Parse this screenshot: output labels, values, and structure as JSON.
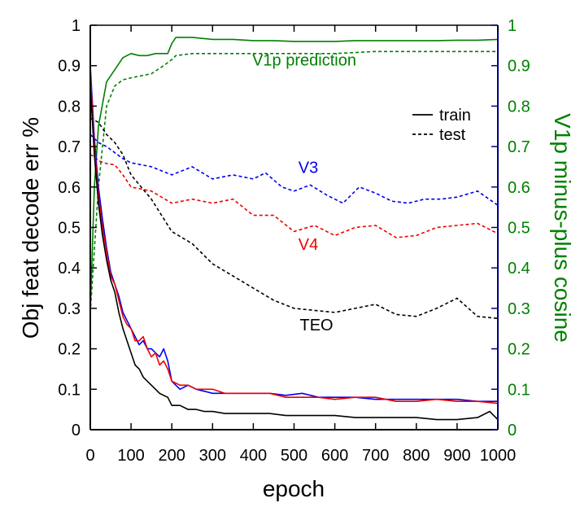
{
  "chart_data": {
    "type": "line",
    "xlabel": "epoch",
    "ylabel_left": "Obj feat decode err %",
    "ylabel_right": "V1p minus-plus cosine",
    "xlim": [
      0,
      1000
    ],
    "ylim_left": [
      0,
      1
    ],
    "ylim_right": [
      0,
      1
    ],
    "x_ticks": [
      0,
      100,
      200,
      300,
      400,
      500,
      600,
      700,
      800,
      900,
      1000
    ],
    "y_ticks": [
      0,
      0.1,
      0.2,
      0.3,
      0.4,
      0.5,
      0.6,
      0.7,
      0.8,
      0.9,
      1
    ],
    "grid": false,
    "legend": {
      "position": "top-right",
      "entries": [
        {
          "label": "train",
          "style": "solid"
        },
        {
          "label": "test",
          "style": "dashed"
        }
      ]
    },
    "annotations": [
      {
        "text": "V1p prediction",
        "color": "#008000",
        "x": 525,
        "y": 0.9,
        "axis": "right"
      },
      {
        "text": "V3",
        "color": "#0000ee",
        "x": 535,
        "y": 0.635,
        "axis": "left"
      },
      {
        "text": "V4",
        "color": "#ee0000",
        "x": 535,
        "y": 0.445,
        "axis": "left"
      },
      {
        "text": "TEO",
        "color": "#000000",
        "x": 555,
        "y": 0.245,
        "axis": "left"
      }
    ],
    "series": [
      {
        "key": "v1p_train",
        "color": "#008000",
        "style": "solid",
        "axis": "right",
        "x": [
          0,
          10,
          20,
          40,
          60,
          80,
          100,
          120,
          140,
          160,
          180,
          190,
          200,
          210,
          250,
          300,
          350,
          400,
          450,
          500,
          550,
          600,
          650,
          700,
          750,
          800,
          850,
          900,
          950,
          1000
        ],
        "y": [
          0.29,
          0.6,
          0.75,
          0.86,
          0.89,
          0.92,
          0.93,
          0.925,
          0.925,
          0.93,
          0.93,
          0.93,
          0.955,
          0.97,
          0.97,
          0.965,
          0.965,
          0.962,
          0.962,
          0.96,
          0.96,
          0.96,
          0.962,
          0.962,
          0.962,
          0.962,
          0.962,
          0.963,
          0.963,
          0.965
        ]
      },
      {
        "key": "v1p_test",
        "color": "#008000",
        "style": "dashed",
        "axis": "right",
        "x": [
          0,
          20,
          40,
          60,
          80,
          100,
          150,
          180,
          200,
          210,
          250,
          300,
          400,
          500,
          600,
          700,
          800,
          900,
          1000
        ],
        "y": [
          0.29,
          0.6,
          0.8,
          0.85,
          0.865,
          0.87,
          0.88,
          0.9,
          0.915,
          0.925,
          0.93,
          0.93,
          0.93,
          0.93,
          0.93,
          0.935,
          0.935,
          0.935,
          0.935
        ]
      },
      {
        "key": "v3_test",
        "color": "#0000ee",
        "style": "dashed",
        "axis": "left",
        "x": [
          0,
          10,
          20,
          40,
          60,
          80,
          100,
          150,
          200,
          250,
          300,
          350,
          400,
          430,
          470,
          500,
          540,
          580,
          620,
          660,
          700,
          740,
          780,
          820,
          860,
          900,
          950,
          1000
        ],
        "y": [
          0.73,
          0.72,
          0.71,
          0.7,
          0.685,
          0.67,
          0.66,
          0.65,
          0.63,
          0.65,
          0.62,
          0.63,
          0.62,
          0.635,
          0.6,
          0.59,
          0.605,
          0.58,
          0.56,
          0.6,
          0.585,
          0.565,
          0.56,
          0.57,
          0.57,
          0.575,
          0.59,
          0.555
        ]
      },
      {
        "key": "v4_test",
        "color": "#ee0000",
        "style": "dashed",
        "axis": "left",
        "x": [
          0,
          10,
          20,
          40,
          60,
          80,
          100,
          150,
          200,
          250,
          300,
          350,
          400,
          450,
          500,
          550,
          600,
          650,
          700,
          750,
          800,
          850,
          900,
          950,
          1000
        ],
        "y": [
          0.68,
          0.675,
          0.665,
          0.658,
          0.655,
          0.63,
          0.6,
          0.59,
          0.56,
          0.57,
          0.56,
          0.57,
          0.53,
          0.53,
          0.49,
          0.505,
          0.48,
          0.5,
          0.505,
          0.475,
          0.48,
          0.5,
          0.505,
          0.51,
          0.485
        ]
      },
      {
        "key": "teo_test",
        "color": "#000000",
        "style": "dashed",
        "axis": "left",
        "x": [
          0,
          10,
          20,
          40,
          60,
          80,
          100,
          150,
          200,
          250,
          300,
          350,
          400,
          450,
          500,
          550,
          600,
          650,
          700,
          750,
          800,
          850,
          900,
          950,
          1000
        ],
        "y": [
          0.77,
          0.765,
          0.76,
          0.73,
          0.71,
          0.68,
          0.63,
          0.57,
          0.49,
          0.46,
          0.41,
          0.38,
          0.35,
          0.32,
          0.3,
          0.295,
          0.29,
          0.3,
          0.31,
          0.285,
          0.28,
          0.3,
          0.325,
          0.28,
          0.275
        ]
      },
      {
        "key": "v3_train",
        "color": "#0000ee",
        "style": "solid",
        "axis": "left",
        "x": [
          0,
          10,
          20,
          30,
          40,
          50,
          60,
          70,
          80,
          90,
          100,
          110,
          120,
          130,
          140,
          150,
          160,
          170,
          180,
          190,
          200,
          220,
          240,
          260,
          280,
          300,
          330,
          360,
          400,
          440,
          480,
          520,
          560,
          600,
          650,
          700,
          750,
          800,
          850,
          900,
          950,
          1000
        ],
        "y": [
          0.9,
          0.72,
          0.6,
          0.52,
          0.45,
          0.39,
          0.36,
          0.33,
          0.29,
          0.27,
          0.25,
          0.23,
          0.21,
          0.22,
          0.2,
          0.2,
          0.19,
          0.18,
          0.2,
          0.17,
          0.12,
          0.1,
          0.11,
          0.1,
          0.095,
          0.09,
          0.09,
          0.09,
          0.09,
          0.09,
          0.085,
          0.09,
          0.08,
          0.08,
          0.08,
          0.075,
          0.075,
          0.075,
          0.075,
          0.075,
          0.07,
          0.07
        ]
      },
      {
        "key": "v4_train",
        "color": "#ee0000",
        "style": "solid",
        "axis": "left",
        "x": [
          0,
          10,
          20,
          30,
          40,
          50,
          60,
          70,
          80,
          90,
          100,
          110,
          120,
          130,
          140,
          150,
          160,
          170,
          180,
          190,
          200,
          220,
          240,
          260,
          280,
          300,
          330,
          360,
          400,
          440,
          480,
          520,
          560,
          600,
          650,
          700,
          750,
          800,
          850,
          900,
          950,
          1000
        ],
        "y": [
          0.88,
          0.7,
          0.58,
          0.5,
          0.44,
          0.38,
          0.36,
          0.32,
          0.28,
          0.26,
          0.25,
          0.22,
          0.22,
          0.23,
          0.2,
          0.18,
          0.19,
          0.16,
          0.17,
          0.15,
          0.12,
          0.11,
          0.11,
          0.1,
          0.1,
          0.1,
          0.09,
          0.09,
          0.09,
          0.09,
          0.08,
          0.08,
          0.08,
          0.075,
          0.08,
          0.08,
          0.07,
          0.07,
          0.075,
          0.07,
          0.07,
          0.065
        ]
      },
      {
        "key": "teo_train",
        "color": "#000000",
        "style": "solid",
        "axis": "left",
        "x": [
          0,
          10,
          20,
          30,
          40,
          50,
          60,
          70,
          80,
          90,
          100,
          110,
          120,
          130,
          140,
          150,
          160,
          170,
          180,
          190,
          200,
          220,
          240,
          260,
          280,
          300,
          330,
          360,
          400,
          440,
          480,
          520,
          560,
          600,
          650,
          700,
          750,
          800,
          850,
          900,
          950,
          980,
          1000
        ],
        "y": [
          0.85,
          0.68,
          0.56,
          0.48,
          0.42,
          0.37,
          0.34,
          0.29,
          0.25,
          0.22,
          0.19,
          0.16,
          0.15,
          0.13,
          0.12,
          0.11,
          0.1,
          0.09,
          0.085,
          0.08,
          0.06,
          0.06,
          0.05,
          0.05,
          0.045,
          0.045,
          0.04,
          0.04,
          0.04,
          0.04,
          0.035,
          0.035,
          0.035,
          0.035,
          0.03,
          0.03,
          0.03,
          0.03,
          0.025,
          0.025,
          0.03,
          0.045,
          0.025
        ]
      }
    ]
  }
}
